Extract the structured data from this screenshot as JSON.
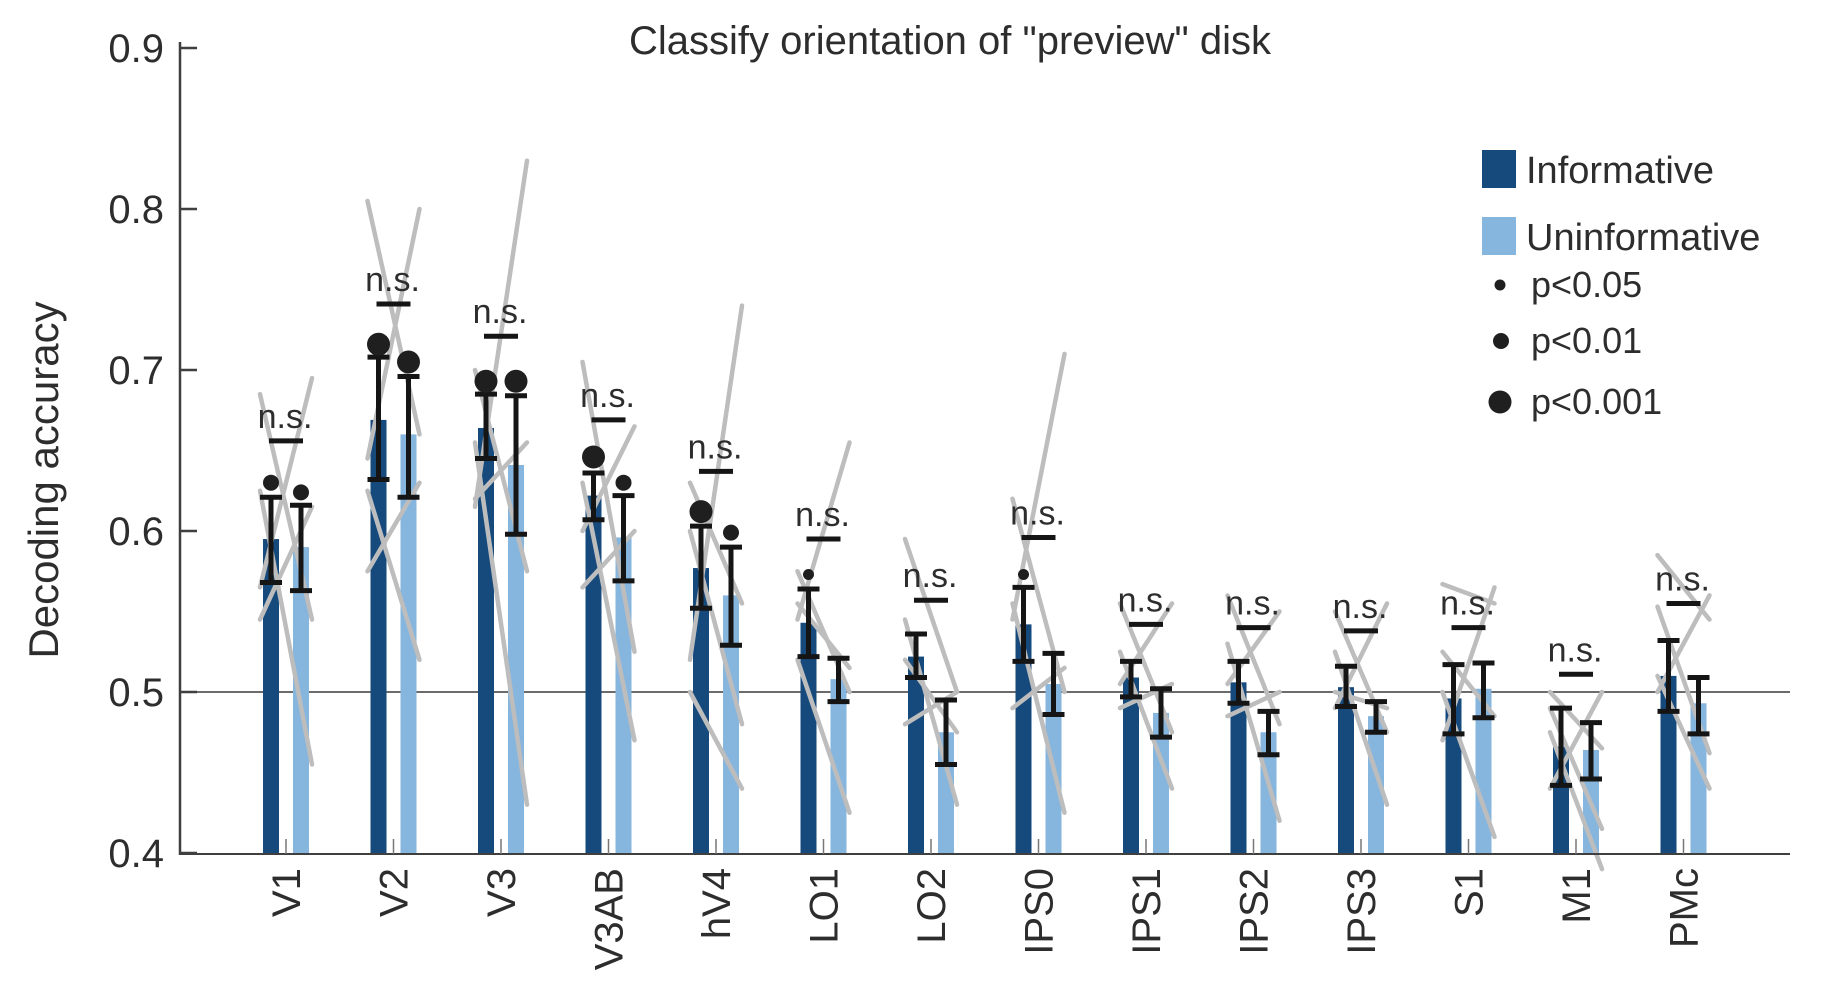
{
  "chart_data": {
    "type": "bar",
    "title": "Classify orientation of \"preview\" disk",
    "ylabel": "Decoding accuracy",
    "xlabel": "",
    "ylim": [
      0.4,
      0.9
    ],
    "yticks": [
      0.4,
      0.5,
      0.6,
      0.7,
      0.8,
      0.9
    ],
    "chance_level": 0.5,
    "grid": false,
    "ns_label": "n.s.",
    "categories": [
      "V1",
      "V2",
      "V3",
      "V3AB",
      "hV4",
      "LO1",
      "LO2",
      "IPS0",
      "IPS1",
      "IPS2",
      "IPS3",
      "S1",
      "M1",
      "PMc"
    ],
    "series": [
      {
        "name": "Informative",
        "values": [
          0.595,
          0.669,
          0.664,
          0.622,
          0.577,
          0.543,
          0.522,
          0.542,
          0.509,
          0.506,
          0.503,
          0.496,
          0.466,
          0.51
        ],
        "err_lo": [
          0.568,
          0.632,
          0.645,
          0.607,
          0.552,
          0.522,
          0.509,
          0.519,
          0.497,
          0.493,
          0.491,
          0.474,
          0.442,
          0.488
        ],
        "err_hi": [
          0.621,
          0.708,
          0.685,
          0.636,
          0.603,
          0.564,
          0.536,
          0.565,
          0.519,
          0.519,
          0.516,
          0.517,
          0.49,
          0.532
        ]
      },
      {
        "name": "Uninformative",
        "values": [
          0.59,
          0.66,
          0.641,
          0.596,
          0.56,
          0.508,
          0.475,
          0.505,
          0.487,
          0.475,
          0.485,
          0.502,
          0.464,
          0.493
        ],
        "err_lo": [
          0.563,
          0.621,
          0.598,
          0.569,
          0.529,
          0.494,
          0.455,
          0.486,
          0.472,
          0.461,
          0.475,
          0.484,
          0.446,
          0.474
        ],
        "err_hi": [
          0.616,
          0.696,
          0.684,
          0.622,
          0.59,
          0.521,
          0.495,
          0.524,
          0.502,
          0.488,
          0.494,
          0.518,
          0.481,
          0.509
        ]
      }
    ],
    "significance_dots": [
      {
        "group": "V1",
        "series": "Informative",
        "level": "p<0.01",
        "y": 0.63
      },
      {
        "group": "V1",
        "series": "Uninformative",
        "level": "p<0.01",
        "y": 0.624
      },
      {
        "group": "V2",
        "series": "Informative",
        "level": "p<0.001",
        "y": 0.716
      },
      {
        "group": "V2",
        "series": "Uninformative",
        "level": "p<0.001",
        "y": 0.705
      },
      {
        "group": "V3",
        "series": "Informative",
        "level": "p<0.001",
        "y": 0.693
      },
      {
        "group": "V3",
        "series": "Uninformative",
        "level": "p<0.001",
        "y": 0.693
      },
      {
        "group": "V3AB",
        "series": "Informative",
        "level": "p<0.001",
        "y": 0.646
      },
      {
        "group": "V3AB",
        "series": "Uninformative",
        "level": "p<0.01",
        "y": 0.63
      },
      {
        "group": "hV4",
        "series": "Informative",
        "level": "p<0.001",
        "y": 0.612
      },
      {
        "group": "hV4",
        "series": "Uninformative",
        "level": "p<0.01",
        "y": 0.599
      },
      {
        "group": "LO1",
        "series": "Informative",
        "level": "p<0.05",
        "y": 0.573
      },
      {
        "group": "IPS0",
        "series": "Informative",
        "level": "p<0.05",
        "y": 0.573
      }
    ],
    "ns_y": [
      0.656,
      0.741,
      0.721,
      0.669,
      0.637,
      0.595,
      0.557,
      0.596,
      0.542,
      0.54,
      0.538,
      0.54,
      0.511,
      0.555
    ],
    "subject_lines": [
      {
        "group": "V1",
        "pairs": [
          [
            0.685,
            0.545
          ],
          [
            0.565,
            0.695
          ],
          [
            0.625,
            0.455
          ],
          [
            0.545,
            0.615
          ]
        ]
      },
      {
        "group": "V2",
        "pairs": [
          [
            0.805,
            0.66
          ],
          [
            0.645,
            0.8
          ],
          [
            0.625,
            0.52
          ],
          [
            0.575,
            0.63
          ]
        ]
      },
      {
        "group": "V3",
        "pairs": [
          [
            0.7,
            0.575
          ],
          [
            0.615,
            0.83
          ],
          [
            0.655,
            0.43
          ],
          [
            0.62,
            0.655
          ]
        ]
      },
      {
        "group": "V3AB",
        "pairs": [
          [
            0.705,
            0.525
          ],
          [
            0.6,
            0.665
          ],
          [
            0.63,
            0.47
          ],
          [
            0.565,
            0.6
          ]
        ]
      },
      {
        "group": "hV4",
        "pairs": [
          [
            0.6,
            0.48
          ],
          [
            0.52,
            0.74
          ],
          [
            0.63,
            0.555
          ],
          [
            0.5,
            0.44
          ]
        ]
      },
      {
        "group": "LO1",
        "pairs": [
          [
            0.545,
            0.655
          ],
          [
            0.575,
            0.5
          ],
          [
            0.52,
            0.425
          ],
          [
            0.555,
            0.515
          ]
        ]
      },
      {
        "group": "LO2",
        "pairs": [
          [
            0.595,
            0.5
          ],
          [
            0.52,
            0.475
          ],
          [
            0.545,
            0.43
          ],
          [
            0.48,
            0.5
          ]
        ]
      },
      {
        "group": "IPS0",
        "pairs": [
          [
            0.62,
            0.5
          ],
          [
            0.545,
            0.71
          ],
          [
            0.555,
            0.425
          ],
          [
            0.49,
            0.515
          ]
        ]
      },
      {
        "group": "IPS1",
        "pairs": [
          [
            0.555,
            0.475
          ],
          [
            0.505,
            0.555
          ],
          [
            0.525,
            0.44
          ],
          [
            0.49,
            0.505
          ]
        ]
      },
      {
        "group": "IPS2",
        "pairs": [
          [
            0.56,
            0.48
          ],
          [
            0.505,
            0.55
          ],
          [
            0.53,
            0.42
          ],
          [
            0.485,
            0.5
          ]
        ]
      },
      {
        "group": "IPS3",
        "pairs": [
          [
            0.55,
            0.475
          ],
          [
            0.49,
            0.555
          ],
          [
            0.525,
            0.43
          ],
          [
            0.5,
            0.49
          ]
        ]
      },
      {
        "group": "S1",
        "pairs": [
          [
            0.567,
            0.555
          ],
          [
            0.47,
            0.565
          ],
          [
            0.5,
            0.41
          ],
          [
            0.525,
            0.485
          ]
        ]
      },
      {
        "group": "M1",
        "pairs": [
          [
            0.49,
            0.415
          ],
          [
            0.44,
            0.5
          ],
          [
            0.475,
            0.39
          ],
          [
            0.5,
            0.465
          ]
        ]
      },
      {
        "group": "PMc",
        "pairs": [
          [
            0.585,
            0.545
          ],
          [
            0.553,
            0.462
          ],
          [
            0.5,
            0.56
          ],
          [
            0.51,
            0.44
          ]
        ]
      }
    ]
  },
  "legend": {
    "series": [
      {
        "label": "Informative"
      },
      {
        "label": "Uninformative"
      }
    ],
    "sig": [
      {
        "label": "p<0.05",
        "level": "p<0.05"
      },
      {
        "label": "p<0.01",
        "level": "p<0.01"
      },
      {
        "label": "p<0.001",
        "level": "p<0.001"
      }
    ]
  },
  "colors": {
    "informative": "#174a7c",
    "uninformative": "#86b5de",
    "error_bar": "#151515",
    "significance_dot": "#1f1f1f",
    "subject_line": "#bdbdbd",
    "axis": "#3f3f3f",
    "minor_tick": "#777777",
    "text": "#2d2d2d",
    "chance_line": "#3a3a3a"
  }
}
